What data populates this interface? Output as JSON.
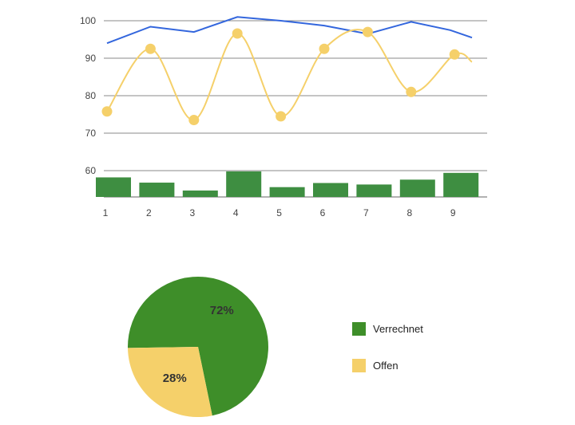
{
  "chart_data": [
    {
      "type": "line",
      "x": [
        1,
        2,
        3,
        4,
        5,
        6,
        7,
        8,
        9
      ],
      "x_ticks": [
        "1",
        "2",
        "3",
        "4",
        "5",
        "6",
        "7",
        "8",
        "9"
      ],
      "y_ticks": [
        "60",
        "70",
        "80",
        "90",
        "100"
      ],
      "ylim": [
        55,
        102
      ],
      "grid": true,
      "legend": "none",
      "colors": {
        "blue": "#3366dd",
        "yellow": "#f5d06a",
        "green": "#3e8e41",
        "grid": "#888888"
      },
      "series": [
        {
          "type": "line",
          "color": "#3366dd",
          "values": [
            94,
            98.4,
            97,
            101,
            100,
            98.7,
            96.5,
            99.7,
            97.5,
            95.5
          ],
          "x_values": [
            1,
            2,
            3,
            4,
            5,
            6,
            7,
            8,
            8.9,
            9.4
          ]
        },
        {
          "type": "line-smooth",
          "color": "#f5d06a",
          "values": [
            75.8,
            92.5,
            73.5,
            96.6,
            74.5,
            92.5,
            97,
            81,
            91,
            89
          ],
          "x_values": [
            1,
            2,
            3,
            4,
            5,
            6,
            7,
            8,
            9,
            9.4
          ],
          "markers": [
            true,
            true,
            true,
            true,
            true,
            true,
            true,
            true,
            true,
            false
          ]
        },
        {
          "type": "bar",
          "color": "#3e8e41",
          "values": [
            58.2,
            56.8,
            54.7,
            59.8,
            55.6,
            56.7,
            56.3,
            57.6,
            59.4
          ]
        }
      ]
    },
    {
      "type": "pie",
      "slices": [
        {
          "label": "Verrechnet",
          "value": 72,
          "display": "72%",
          "color": "#3e8e29"
        },
        {
          "label": "Offen",
          "value": 28,
          "display": "28%",
          "color": "#f5d06a"
        }
      ],
      "legend": "right"
    }
  ]
}
